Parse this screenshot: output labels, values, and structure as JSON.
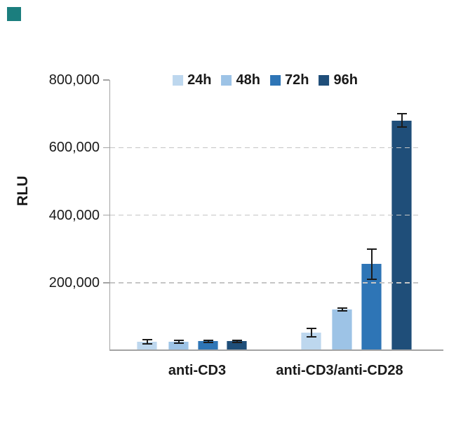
{
  "brand": {
    "mark_color": "#1B7E7E"
  },
  "chart_data": {
    "type": "bar",
    "title": "",
    "ylabel": "RLU",
    "xlabel": "",
    "ylim": [
      0,
      800000
    ],
    "yticks": [
      200000,
      400000,
      600000,
      800000
    ],
    "ytick_labels": [
      "200,000",
      "400,000",
      "600,000",
      "800,000"
    ],
    "grid": {
      "horizontal": true,
      "style": "dashed",
      "at": [
        200000,
        400000,
        600000
      ]
    },
    "legend": {
      "position": "top-center",
      "entries": [
        "24h",
        "48h",
        "72h",
        "96h"
      ]
    },
    "categories": [
      "anti-CD3",
      "anti-CD3/anti-CD28"
    ],
    "series": [
      {
        "name": "24h",
        "color": "#BDD7EE",
        "values": [
          25000,
          52000
        ],
        "errors": [
          6000,
          13000
        ]
      },
      {
        "name": "48h",
        "color": "#9DC3E6",
        "values": [
          25000,
          120000
        ],
        "errors": [
          4000,
          4000
        ]
      },
      {
        "name": "72h",
        "color": "#2E75B6",
        "values": [
          26000,
          255000
        ],
        "errors": [
          4000,
          45000
        ]
      },
      {
        "name": "96h",
        "color": "#1F4E79",
        "values": [
          26000,
          680000
        ],
        "errors": [
          4000,
          20000
        ]
      }
    ],
    "colors": {
      "error_bar": "#1c1c1c",
      "axis": "#a3a3a3",
      "gridline": "#c5c5c5",
      "text": "#1a1a1a"
    }
  }
}
